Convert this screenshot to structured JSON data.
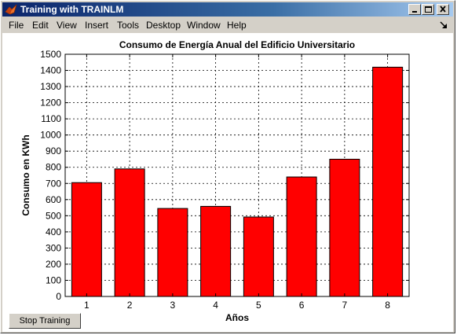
{
  "window": {
    "title": "Training with TRAINLM"
  },
  "menu": {
    "items": [
      "File",
      "Edit",
      "View",
      "Insert",
      "Tools",
      "Desktop",
      "Window",
      "Help"
    ]
  },
  "controls": {
    "stop_button_label": "Stop Training"
  },
  "colors": {
    "bar_fill": "#ff0000",
    "bar_edge": "#000000",
    "titlebar_start": "#0a246a",
    "titlebar_end": "#a6caf0",
    "window_face": "#d4d0c8"
  },
  "chart_data": {
    "type": "bar",
    "title": "Consumo de Energía Anual del Edificio Universitario",
    "xlabel": "Años",
    "ylabel": "Consumo en KWh",
    "categories": [
      "1",
      "2",
      "3",
      "4",
      "5",
      "6",
      "7",
      "8"
    ],
    "values": [
      705,
      790,
      545,
      558,
      492,
      740,
      850,
      1420
    ],
    "ylim": [
      0,
      1500
    ],
    "yticks": [
      0,
      100,
      200,
      300,
      400,
      500,
      600,
      700,
      800,
      900,
      1000,
      1100,
      1200,
      1300,
      1400,
      1500
    ],
    "grid": true,
    "grid_style": "dotted"
  }
}
